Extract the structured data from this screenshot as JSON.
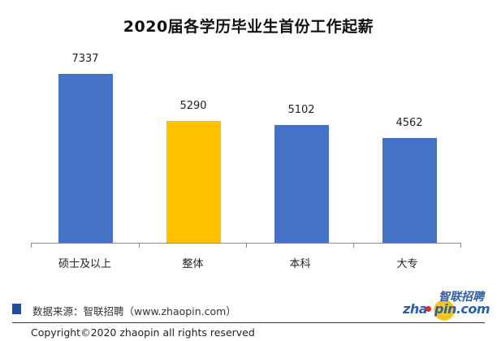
{
  "chart_data": {
    "type": "bar",
    "title": "2020届各学历毕业生首份工作起薪",
    "categories": [
      "硕士及以上",
      "整体",
      "本科",
      "大专"
    ],
    "values": [
      7337,
      5290,
      5102,
      4562
    ],
    "colors": [
      "#4472c4",
      "#ffc000",
      "#4472c4",
      "#4472c4"
    ],
    "data_labels": [
      "7337",
      "5290",
      "5102",
      "4562"
    ],
    "xlabel": "",
    "ylabel": "",
    "ylim": [
      0,
      7337
    ],
    "grid": false,
    "legend": null
  },
  "footer": {
    "source_label": "数据来源：智联招聘（www.zhaopin.com）",
    "source_marker_color": "#1f4e9a",
    "copyright": "Copyright©2020 zhaopin  all  rights  reserved"
  },
  "logo": {
    "cn_text": "智联招聘",
    "en_text": "zhaopin.com",
    "en_left": "zha",
    "en_right": "pin.com"
  }
}
